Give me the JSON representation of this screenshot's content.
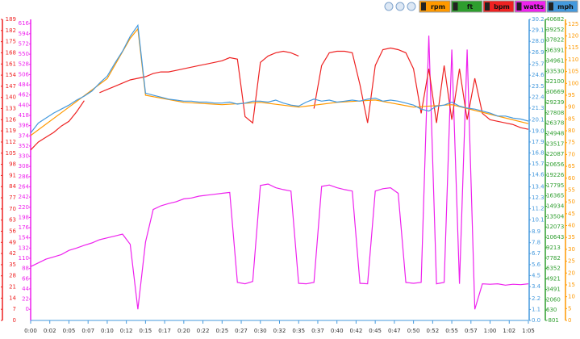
{
  "chart_data": {
    "type": "line",
    "buttons": [
      {
        "label": "rpm",
        "color": "#ff9900"
      },
      {
        "label": "ft",
        "color": "#2e9e2e"
      },
      {
        "label": "bpm",
        "color": "#ee2222"
      },
      {
        "label": "watts",
        "color": "#ee22ee"
      },
      {
        "label": "mph",
        "color": "#4499dd"
      }
    ],
    "xlim": [
      0,
      65
    ],
    "xticks": [
      {
        "value": 0,
        "label": "0:00"
      },
      {
        "value": 2.5,
        "label": "0:02"
      },
      {
        "value": 5,
        "label": "0:05"
      },
      {
        "value": 7.5,
        "label": "0:07"
      },
      {
        "value": 10,
        "label": "0:10"
      },
      {
        "value": 12.5,
        "label": "0:12"
      },
      {
        "value": 15,
        "label": "0:15"
      },
      {
        "value": 17.5,
        "label": "0:17"
      },
      {
        "value": 20,
        "label": "0:20"
      },
      {
        "value": 22.5,
        "label": "0:22"
      },
      {
        "value": 25,
        "label": "0:25"
      },
      {
        "value": 27.5,
        "label": "0:27"
      },
      {
        "value": 30,
        "label": "0:30"
      },
      {
        "value": 32.5,
        "label": "0:32"
      },
      {
        "value": 35,
        "label": "0:35"
      },
      {
        "value": 37.5,
        "label": "0:37"
      },
      {
        "value": 40,
        "label": "0:40"
      },
      {
        "value": 42.5,
        "label": "0:42"
      },
      {
        "value": 45,
        "label": "0:45"
      },
      {
        "value": 47.5,
        "label": "0:47"
      },
      {
        "value": 50,
        "label": "0:50"
      },
      {
        "value": 52.5,
        "label": "0:52"
      },
      {
        "value": 55,
        "label": "0:55"
      },
      {
        "value": 57.5,
        "label": "0:57"
      },
      {
        "value": 60,
        "label": "1:00"
      },
      {
        "value": 62.5,
        "label": "1:02"
      },
      {
        "value": 65,
        "label": "1:05"
      }
    ],
    "axes": {
      "bpm": {
        "color": "#ee2222",
        "ylim": [
          0,
          189
        ],
        "yticks": [
          0,
          7,
          14,
          21,
          28,
          35,
          42,
          49,
          56,
          63,
          70,
          77,
          84,
          91,
          98,
          105,
          112,
          119,
          126,
          133,
          140,
          147,
          154,
          161,
          168,
          175,
          182,
          189
        ]
      },
      "watts": {
        "color": "#ee22ee",
        "ylim": [
          -24,
          625
        ],
        "yticks": [
          0,
          22,
          44,
          66,
          88,
          110,
          132,
          154,
          176,
          198,
          220,
          242,
          264,
          286,
          308,
          330,
          352,
          374,
          396,
          418,
          440,
          462,
          484,
          506,
          528,
          550,
          572,
          594,
          616
        ]
      },
      "mph": {
        "color": "#4499dd",
        "ylim": [
          0,
          30.2
        ],
        "yticks": [
          {
            "value": 0,
            "label": "0.0"
          },
          1.1,
          2.2,
          3.4,
          4.5,
          5.6,
          6.7,
          7.8,
          8.9,
          10.1,
          11.2,
          12.3,
          13.4,
          14.6,
          15.7,
          16.8,
          17.9,
          {
            "value": 19,
            "label": "19.0"
          },
          20.1,
          21.3,
          22.4,
          23.5,
          24.6,
          25.7,
          26.9,
          {
            "value": 28,
            "label": "28.0"
          },
          29.1,
          30.2
        ]
      },
      "ft": {
        "color": "#2e9e2e",
        "ylim": [
          -801,
          40682
        ],
        "yticks": [
          -801,
          630,
          2060,
          3491,
          4921,
          6352,
          7782,
          9213,
          10643,
          12073,
          13504,
          14934,
          16365,
          17795,
          19226,
          20656,
          22087,
          23517,
          24948,
          26378,
          27808,
          29239,
          30669,
          32100,
          33530,
          34961,
          36391,
          37822,
          39252,
          40682
        ]
      },
      "rpm": {
        "color": "#ff9900",
        "ylim": [
          0,
          127
        ],
        "yticks": [
          0,
          5,
          10,
          15,
          20,
          25,
          30,
          35,
          40,
          45,
          50,
          55,
          60,
          65,
          70,
          75,
          80,
          85,
          90,
          95,
          100,
          105,
          110,
          115,
          120,
          125
        ]
      }
    },
    "series": [
      {
        "name": "watts",
        "axis": "watts",
        "color": "#ee22ee",
        "x": [
          0,
          1,
          2,
          3,
          4,
          5,
          6,
          7,
          8,
          9,
          10,
          11,
          12,
          13,
          14,
          15,
          16,
          17,
          18,
          19,
          20,
          21,
          22,
          23,
          24,
          25,
          26,
          27,
          28,
          29,
          30,
          31,
          32,
          33,
          34,
          35,
          36,
          37,
          38,
          39,
          40,
          41,
          42,
          43,
          44,
          45,
          46,
          47,
          48,
          49,
          50,
          51,
          52,
          53,
          54,
          55,
          56,
          57,
          58,
          59,
          60,
          61,
          62,
          63,
          64,
          65
        ],
        "values": [
          92,
          100,
          108,
          113,
          118,
          127,
          132,
          138,
          143,
          150,
          154,
          158,
          162,
          140,
          0,
          145,
          215,
          223,
          228,
          232,
          238,
          240,
          244,
          246,
          248,
          250,
          252,
          58,
          55,
          60,
          267,
          270,
          262,
          258,
          255,
          56,
          55,
          58,
          265,
          268,
          262,
          258,
          255,
          56,
          55,
          255,
          260,
          262,
          250,
          58,
          56,
          58,
          590,
          55,
          58,
          560,
          55,
          560,
          0,
          55,
          54,
          55,
          52,
          54,
          53,
          55
        ]
      },
      {
        "name": "bpm",
        "axis": "bpm",
        "color": "#ee2222",
        "x": [
          0,
          1,
          2,
          3,
          4,
          5,
          6,
          7,
          8,
          9,
          10,
          11,
          12,
          13,
          14,
          15,
          16,
          17,
          18,
          19,
          20,
          21,
          22,
          23,
          24,
          25,
          26,
          27,
          28,
          29,
          30,
          31,
          32,
          33,
          34,
          35,
          36,
          37,
          38,
          39,
          40,
          41,
          42,
          43,
          44,
          45,
          46,
          47,
          48,
          49,
          50,
          51,
          52,
          53,
          54,
          55,
          56,
          57,
          58,
          59,
          60,
          61,
          62,
          63,
          64,
          65
        ],
        "values": [
          107,
          112,
          115,
          118,
          122,
          125,
          131,
          138,
          null,
          143,
          145,
          147,
          149,
          151,
          152,
          153,
          155,
          156,
          156,
          157,
          158,
          159,
          160,
          161,
          162,
          163,
          165,
          164,
          128,
          124,
          162,
          166,
          168,
          169,
          168,
          166,
          null,
          133,
          160,
          168,
          169,
          169,
          168,
          148,
          124,
          160,
          170,
          171,
          170,
          168,
          158,
          130,
          158,
          124,
          160,
          126,
          158,
          126,
          152,
          130,
          126,
          125,
          124,
          123,
          121,
          120
        ]
      },
      {
        "name": "rpm",
        "axis": "rpm",
        "color": "#ff9900",
        "x": [
          0,
          5,
          10,
          13,
          14,
          15,
          20,
          25,
          30,
          35,
          40,
          45,
          50,
          55,
          60,
          65
        ],
        "values": [
          78,
          90,
          102,
          119,
          123,
          95,
          92,
          91,
          92,
          90,
          92,
          93,
          90,
          91,
          87,
          83
        ]
      },
      {
        "name": "mph",
        "axis": "mph",
        "color": "#4499dd",
        "x": [
          0,
          1,
          2,
          3,
          4,
          5,
          6,
          7,
          8,
          9,
          10,
          11,
          12,
          13,
          14,
          15,
          16,
          17,
          18,
          19,
          20,
          21,
          22,
          23,
          24,
          25,
          26,
          27,
          28,
          29,
          30,
          31,
          32,
          33,
          34,
          35,
          36,
          37,
          38,
          39,
          40,
          41,
          42,
          43,
          44,
          45,
          46,
          47,
          48,
          49,
          50,
          51,
          52,
          53,
          54,
          55,
          56,
          57,
          58,
          59,
          60,
          61,
          62,
          63,
          64,
          65
        ],
        "values": [
          18.8,
          19.8,
          20.3,
          20.8,
          21.2,
          21.6,
          22.1,
          22.5,
          23.0,
          23.8,
          24.5,
          25.8,
          27.0,
          28.5,
          29.6,
          22.8,
          22.6,
          22.4,
          22.2,
          22.1,
          22.0,
          22.0,
          21.9,
          21.9,
          21.8,
          21.8,
          21.9,
          21.7,
          21.8,
          22.0,
          22.0,
          21.9,
          22.1,
          21.8,
          21.6,
          21.5,
          21.9,
          22.2,
          22.0,
          22.1,
          21.9,
          22.0,
          22.1,
          22.0,
          22.2,
          22.3,
          22.0,
          22.1,
          22.0,
          21.8,
          21.6,
          21.2,
          21.0,
          21.5,
          21.6,
          21.9,
          21.5,
          21.3,
          21.2,
          21.0,
          20.8,
          20.5,
          20.5,
          20.3,
          20.2,
          20.0
        ]
      }
    ]
  }
}
